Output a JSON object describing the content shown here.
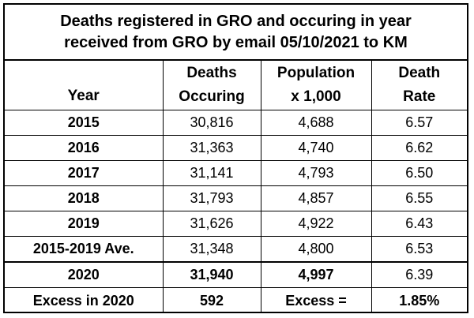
{
  "title": {
    "line1": "Deaths registered in GRO and occuring in year",
    "line2": "received from GRO by email 05/10/2021 to KM"
  },
  "headers": {
    "year": "Year",
    "deaths_l1": "Deaths",
    "deaths_l2": "Occuring",
    "pop_l1": "Population",
    "pop_l2": "x 1,000",
    "rate_l1": "Death",
    "rate_l2": "Rate"
  },
  "rows": [
    {
      "year": "2015",
      "deaths": "30,816",
      "population": "4,688",
      "rate": "6.57"
    },
    {
      "year": "2016",
      "deaths": "31,363",
      "population": "4,740",
      "rate": "6.62"
    },
    {
      "year": "2017",
      "deaths": "31,141",
      "population": "4,793",
      "rate": "6.50"
    },
    {
      "year": "2018",
      "deaths": "31,793",
      "population": "4,857",
      "rate": "6.55"
    },
    {
      "year": "2019",
      "deaths": "31,626",
      "population": "4,922",
      "rate": "6.43"
    },
    {
      "year": "2015-2019 Ave.",
      "deaths": "31,348",
      "population": "4,800",
      "rate": "6.53"
    },
    {
      "year": "2020",
      "deaths": "31,940",
      "population": "4,997",
      "rate": "6.39"
    }
  ],
  "excess": {
    "label": "Excess in 2020",
    "deaths": "592",
    "label2": "Excess =",
    "percent": "1.85%"
  }
}
